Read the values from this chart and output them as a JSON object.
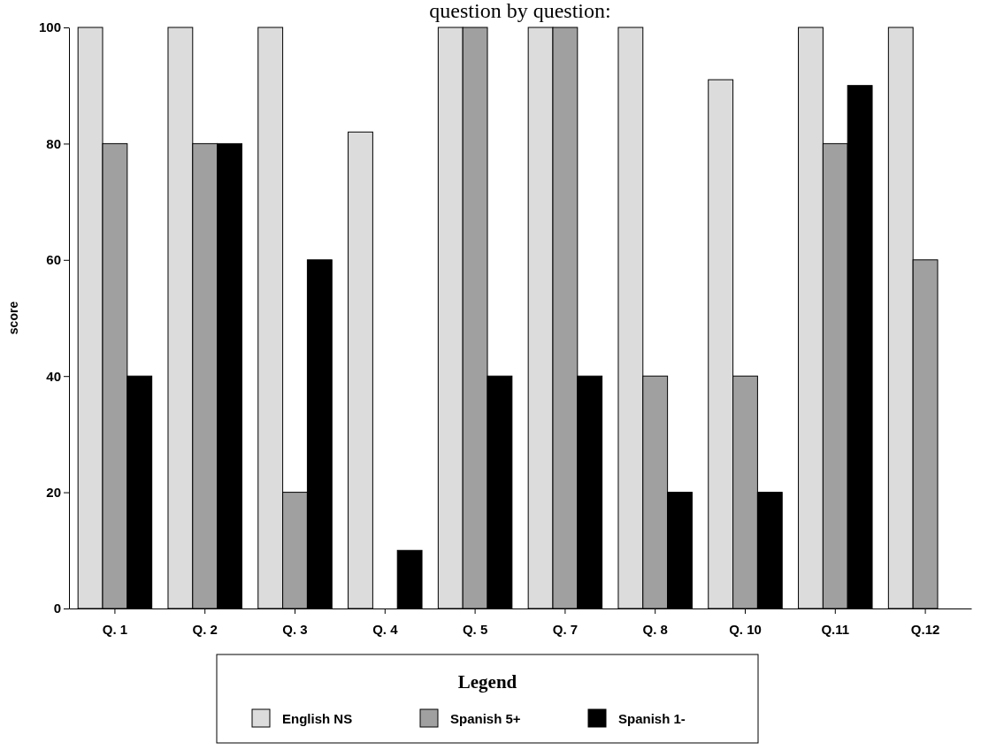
{
  "chart_data": {
    "type": "bar",
    "title": "question by question:",
    "ylabel": "score",
    "legend_title": "Legend",
    "legend": "bottom",
    "categories": [
      "Q. 1",
      "Q. 2",
      "Q. 3",
      "Q. 4",
      "Q. 5",
      "Q. 7",
      "Q. 8",
      "Q. 10",
      "Q.11",
      "Q.12"
    ],
    "ylim": [
      0,
      100
    ],
    "yticks": [
      0,
      20,
      40,
      60,
      80,
      100
    ],
    "series": [
      {
        "name": "English NS",
        "color": "#dcdcdc",
        "values": [
          100,
          100,
          100,
          82,
          100,
          100,
          100,
          91,
          100,
          100
        ]
      },
      {
        "name": "Spanish 5+",
        "color": "#a0a0a0",
        "values": [
          80,
          80,
          20,
          0,
          100,
          100,
          40,
          40,
          80,
          60
        ]
      },
      {
        "name": "Spanish 1-",
        "color": "#000000",
        "values": [
          40,
          80,
          60,
          10,
          40,
          40,
          20,
          20,
          90,
          0
        ]
      }
    ]
  }
}
